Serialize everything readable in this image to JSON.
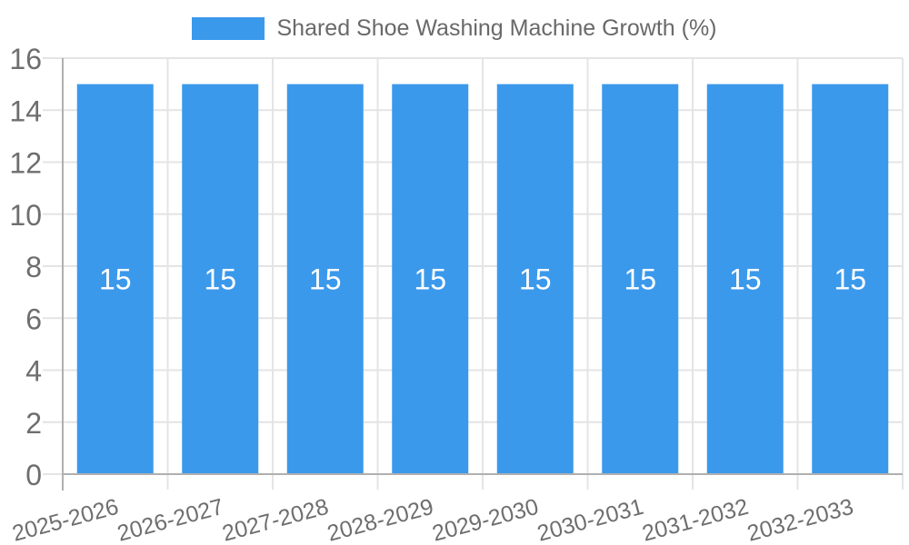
{
  "chart_data": {
    "type": "bar",
    "title": "Shared Shoe Washing Machine Growth (%)",
    "categories": [
      "2025-2026",
      "2026-2027",
      "2027-2028",
      "2028-2029",
      "2029-2030",
      "2030-2031",
      "2031-2032",
      "2032-2033"
    ],
    "series": [
      {
        "name": "Shared Shoe Washing Machine Growth (%)",
        "color": "#3B99EC",
        "values": [
          15,
          15,
          15,
          15,
          15,
          15,
          15,
          15
        ]
      }
    ],
    "bar_value_labels": [
      "15",
      "15",
      "15",
      "15",
      "15",
      "15",
      "15",
      "15"
    ],
    "xlabel": "",
    "ylabel": "",
    "ylim": [
      0,
      16
    ],
    "yticks": [
      0,
      2,
      4,
      6,
      8,
      10,
      12,
      14,
      16
    ],
    "grid": true,
    "legend_position": "top",
    "colors": {
      "bar": "#3B99EC",
      "grid": "#E4E4E4",
      "axis": "#B0B0B0",
      "tick_label": "#6E6E6E",
      "legend_text": "#696969",
      "bar_value_label": "#FFFFFF"
    }
  }
}
